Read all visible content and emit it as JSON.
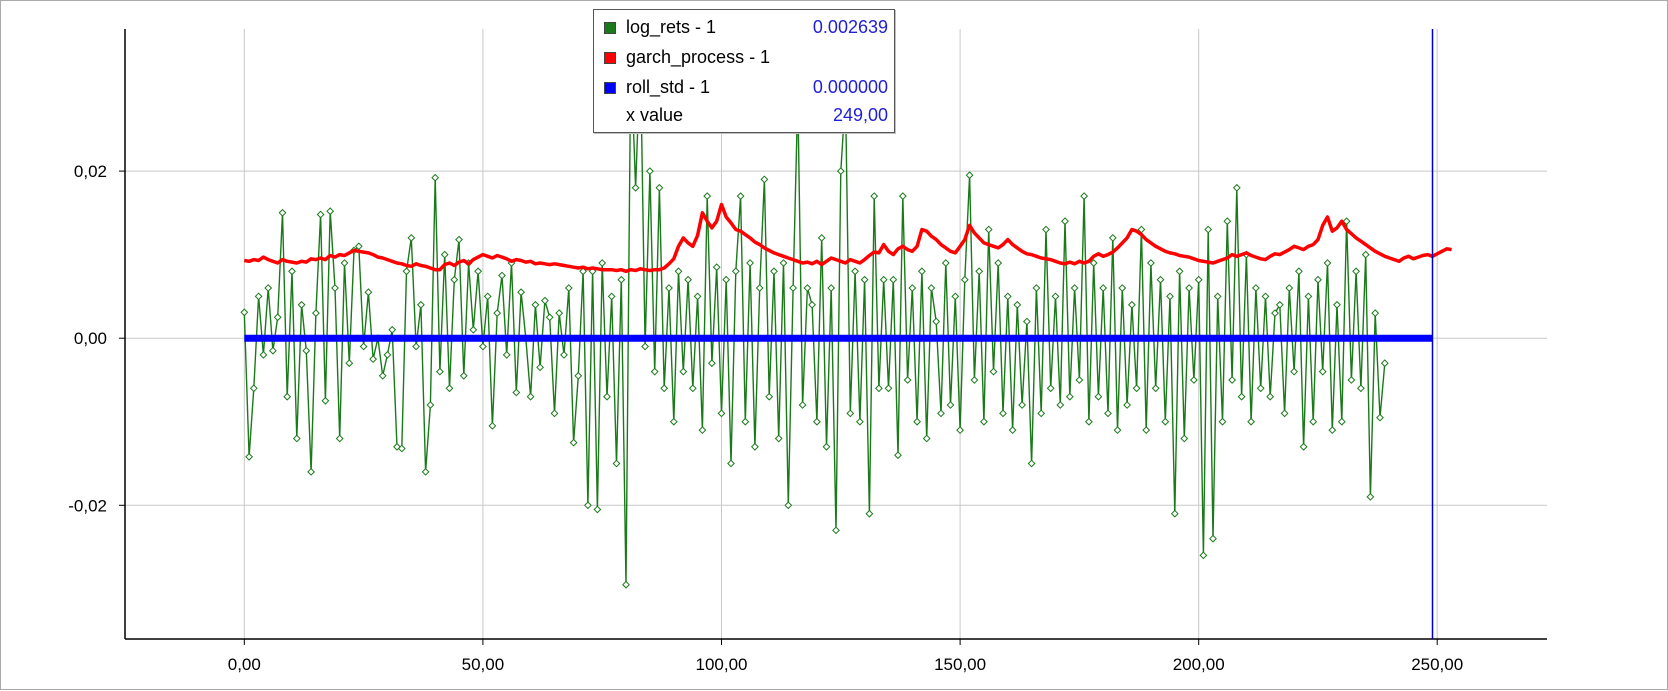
{
  "chart_data": {
    "type": "line",
    "title": "",
    "xlabel": "",
    "ylabel": "",
    "xlim": [
      -25,
      273
    ],
    "ylim": [
      -0.036,
      0.037
    ],
    "x_ticks": [
      0,
      50,
      100,
      150,
      200,
      250
    ],
    "x_tick_labels": [
      "0,00",
      "50,00",
      "100,00",
      "150,00",
      "200,00",
      "250,00"
    ],
    "y_ticks": [
      0.02,
      0.0,
      -0.02
    ],
    "y_tick_labels": [
      "0,02",
      "0,00",
      "-0,02"
    ],
    "grid": true,
    "legend_position": "top-center",
    "cursor_x": 249,
    "series": [
      {
        "name": "log_rets - 1",
        "color": "#1a7a1a",
        "marker": "diamond",
        "x_start": 0,
        "x_step": 1,
        "values": [
          0.0031,
          -0.0142,
          -0.006,
          0.005,
          -0.002,
          0.006,
          -0.0015,
          0.0025,
          0.015,
          -0.007,
          0.008,
          -0.012,
          0.004,
          -0.0015,
          -0.016,
          0.003,
          0.0148,
          -0.0075,
          0.0152,
          0.006,
          -0.012,
          0.009,
          -0.003,
          0.0105,
          0.011,
          -0.001,
          0.0055,
          -0.0025,
          0.0,
          -0.0045,
          -0.002,
          0.001,
          -0.013,
          -0.0132,
          0.008,
          0.012,
          -0.001,
          0.004,
          -0.016,
          -0.008,
          0.0192,
          -0.004,
          0.01,
          -0.006,
          0.007,
          0.0118,
          -0.0045,
          0.009,
          0.001,
          0.008,
          -0.001,
          0.005,
          -0.0105,
          0.003,
          0.0075,
          -0.002,
          0.009,
          -0.0065,
          0.0055,
          0.0,
          -0.007,
          0.004,
          -0.0035,
          0.0045,
          0.0025,
          -0.009,
          0.003,
          -0.002,
          0.006,
          -0.0125,
          -0.0045,
          0.008,
          -0.02,
          0.008,
          -0.0205,
          0.009,
          -0.007,
          0.005,
          -0.015,
          0.007,
          -0.0295,
          0.034,
          0.018,
          0.034,
          -0.001,
          0.02,
          -0.004,
          0.018,
          -0.006,
          0.006,
          -0.01,
          0.008,
          -0.004,
          0.007,
          -0.006,
          0.005,
          -0.011,
          0.017,
          -0.003,
          0.0085,
          -0.009,
          0.007,
          -0.015,
          0.008,
          0.017,
          -0.01,
          0.009,
          -0.013,
          0.006,
          0.019,
          -0.007,
          0.008,
          -0.012,
          0.009,
          -0.02,
          0.006,
          0.029,
          -0.008,
          0.006,
          0.004,
          -0.01,
          0.012,
          -0.013,
          0.006,
          -0.023,
          0.02,
          0.029,
          -0.009,
          0.008,
          -0.01,
          0.007,
          -0.021,
          0.017,
          -0.006,
          0.007,
          -0.006,
          0.007,
          -0.014,
          0.017,
          -0.005,
          0.006,
          -0.01,
          0.008,
          -0.012,
          0.006,
          0.002,
          -0.009,
          0.009,
          -0.008,
          0.005,
          -0.011,
          0.007,
          0.0195,
          -0.005,
          0.008,
          -0.01,
          0.013,
          -0.004,
          0.009,
          -0.009,
          0.005,
          -0.011,
          0.004,
          -0.008,
          0.002,
          -0.015,
          0.006,
          -0.009,
          0.013,
          -0.006,
          0.005,
          -0.008,
          0.014,
          -0.007,
          0.006,
          -0.005,
          0.017,
          -0.01,
          0.009,
          -0.007,
          0.006,
          -0.009,
          0.012,
          -0.011,
          0.006,
          -0.008,
          0.004,
          -0.006,
          0.013,
          -0.011,
          0.009,
          -0.006,
          0.007,
          -0.01,
          0.005,
          -0.021,
          0.008,
          -0.012,
          0.006,
          -0.005,
          0.007,
          -0.026,
          0.013,
          -0.024,
          0.005,
          -0.01,
          0.014,
          -0.005,
          0.018,
          -0.007,
          0.01,
          -0.01,
          0.006,
          -0.006,
          0.005,
          -0.007,
          0.003,
          0.004,
          -0.009,
          0.006,
          -0.004,
          0.008,
          -0.013,
          0.005,
          -0.01,
          0.007,
          -0.004,
          0.009,
          -0.011,
          0.004,
          -0.01,
          0.014,
          -0.005,
          0.008,
          -0.006,
          0.01,
          -0.019,
          0.003,
          -0.0095,
          -0.003
        ]
      },
      {
        "name": "garch_process - 1",
        "color": "#ff0000",
        "x_start": 0,
        "x_step": 1,
        "values": [
          0.0093,
          0.0092,
          0.0094,
          0.0093,
          0.0097,
          0.0094,
          0.0092,
          0.009,
          0.0094,
          0.0092,
          0.0091,
          0.009,
          0.0092,
          0.0091,
          0.0095,
          0.0094,
          0.0096,
          0.0094,
          0.0099,
          0.0097,
          0.01,
          0.0099,
          0.0102,
          0.0105,
          0.0104,
          0.0103,
          0.0102,
          0.01,
          0.0097,
          0.0096,
          0.0094,
          0.0092,
          0.009,
          0.0089,
          0.0087,
          0.0086,
          0.0089,
          0.0087,
          0.0086,
          0.0084,
          0.0082,
          0.0082,
          0.0088,
          0.009,
          0.0087,
          0.0091,
          0.0093,
          0.0089,
          0.0094,
          0.0097,
          0.01,
          0.0098,
          0.0096,
          0.0099,
          0.0097,
          0.0095,
          0.0092,
          0.0094,
          0.0093,
          0.0091,
          0.0092,
          0.0089,
          0.009,
          0.0089,
          0.0088,
          0.0089,
          0.0088,
          0.0087,
          0.0086,
          0.0085,
          0.0084,
          0.0085,
          0.0083,
          0.0084,
          0.0083,
          0.0082,
          0.0082,
          0.0082,
          0.0081,
          0.0082,
          0.008,
          0.0082,
          0.0081,
          0.0083,
          0.0082,
          0.0081,
          0.0082,
          0.0082,
          0.0084,
          0.0089,
          0.0095,
          0.011,
          0.012,
          0.0114,
          0.011,
          0.0123,
          0.015,
          0.014,
          0.0132,
          0.014,
          0.016,
          0.0145,
          0.0138,
          0.013,
          0.0128,
          0.0124,
          0.012,
          0.0115,
          0.0112,
          0.0108,
          0.0105,
          0.0102,
          0.01,
          0.0098,
          0.0096,
          0.0094,
          0.0092,
          0.009,
          0.0091,
          0.0089,
          0.0092,
          0.0088,
          0.0092,
          0.0096,
          0.0094,
          0.0092,
          0.009,
          0.0094,
          0.0092,
          0.009,
          0.0094,
          0.0099,
          0.0103,
          0.0102,
          0.0112,
          0.0104,
          0.01,
          0.0107,
          0.011,
          0.0106,
          0.0104,
          0.011,
          0.013,
          0.0128,
          0.0122,
          0.0118,
          0.0112,
          0.0108,
          0.0104,
          0.0102,
          0.011,
          0.0118,
          0.0135,
          0.0126,
          0.012,
          0.0114,
          0.0112,
          0.011,
          0.0108,
          0.0112,
          0.0118,
          0.0112,
          0.0108,
          0.0104,
          0.0101,
          0.01,
          0.0098,
          0.0096,
          0.0095,
          0.0094,
          0.0092,
          0.009,
          0.0089,
          0.0091,
          0.0089,
          0.0092,
          0.009,
          0.0092,
          0.0098,
          0.0101,
          0.0098,
          0.01,
          0.0103,
          0.0108,
          0.0114,
          0.012,
          0.013,
          0.0128,
          0.0124,
          0.0118,
          0.0114,
          0.011,
          0.0107,
          0.0104,
          0.0102,
          0.0101,
          0.0099,
          0.0098,
          0.0097,
          0.0095,
          0.0093,
          0.0092,
          0.0091,
          0.009,
          0.0092,
          0.0094,
          0.0096,
          0.01,
          0.0098,
          0.01,
          0.0102,
          0.0099,
          0.0097,
          0.0095,
          0.0094,
          0.0098,
          0.0101,
          0.01,
          0.0103,
          0.0106,
          0.011,
          0.0108,
          0.0106,
          0.011,
          0.0112,
          0.0118,
          0.0135,
          0.0145,
          0.0128,
          0.0132,
          0.014,
          0.013,
          0.0125,
          0.012,
          0.0116,
          0.0112,
          0.0108,
          0.0104,
          0.0101,
          0.0098,
          0.0096,
          0.0094,
          0.0092,
          0.0096,
          0.0098,
          0.0095,
          0.0097,
          0.0099,
          0.01,
          0.0098,
          0.0101,
          0.0104,
          0.0107,
          0.0106
        ]
      },
      {
        "name": "roll_std - 1",
        "color": "#0000ff",
        "x_start": 0,
        "x_end": 249,
        "values": [
          0,
          0
        ]
      }
    ]
  },
  "legend": {
    "rows": [
      {
        "swatch_color": "#1a7a1a",
        "name": "log_rets - 1",
        "value": "0.002639"
      },
      {
        "swatch_color": "#ff0000",
        "name": "garch_process - 1",
        "value": ""
      },
      {
        "swatch_color": "#0000ff",
        "name": "roll_std - 1",
        "value": "0.000000"
      },
      {
        "swatch_color": "",
        "name": "x value",
        "value": "249,00"
      }
    ]
  }
}
